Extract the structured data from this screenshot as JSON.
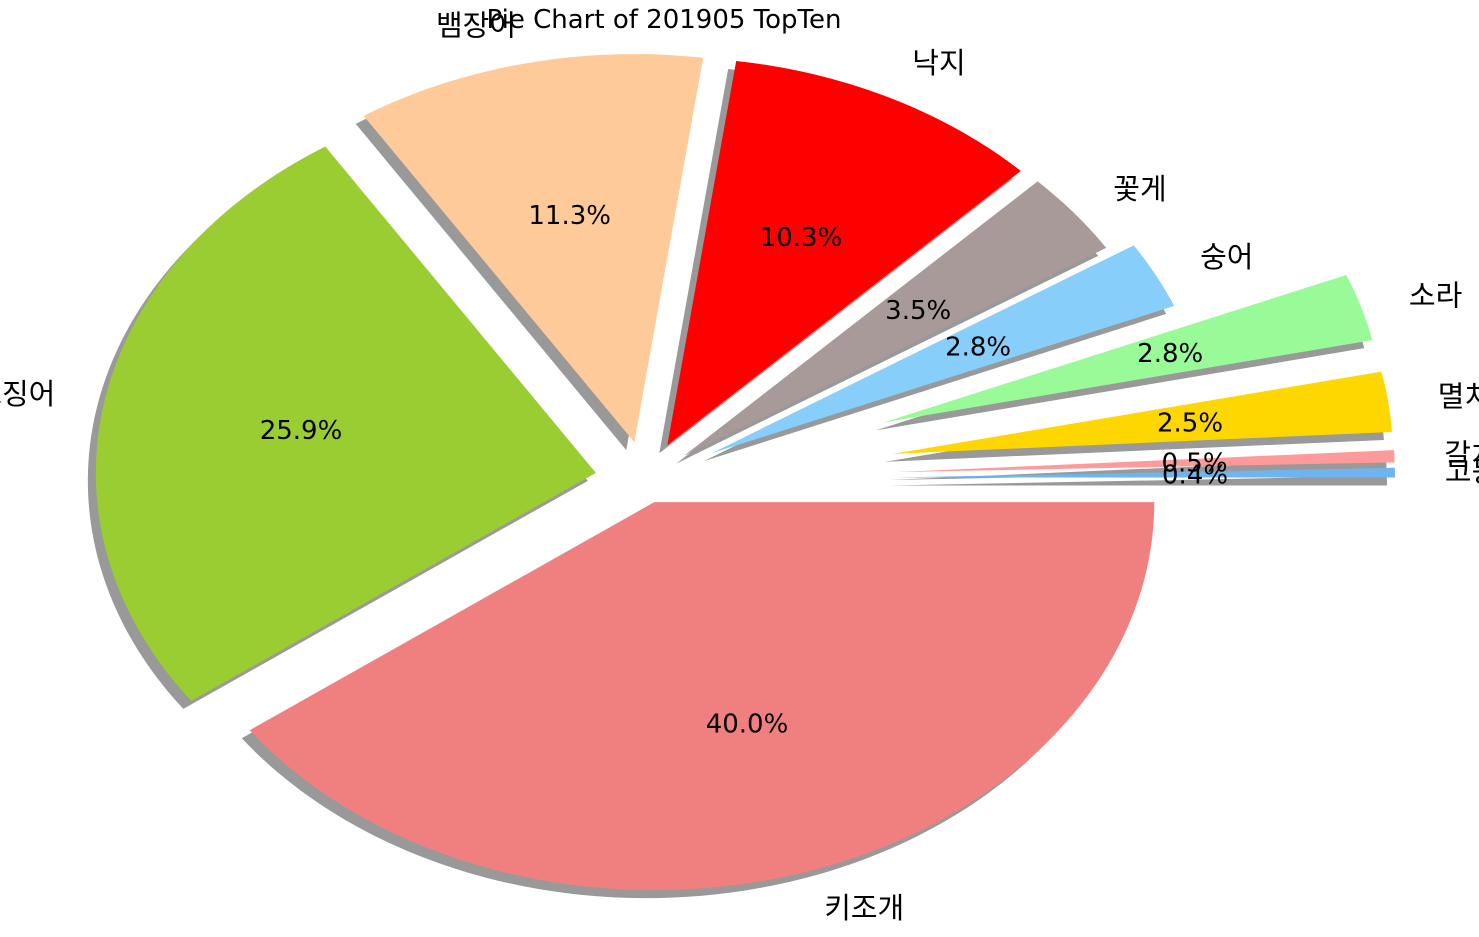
{
  "chart_data": {
    "type": "pie",
    "title": "Pie Chart of 201905 TopTen",
    "slices": [
      {
        "label": "키조개",
        "value": 40.0,
        "pct_label": "40.0%",
        "color": "#F08080"
      },
      {
        "label": "살오징어",
        "value": 25.9,
        "pct_label": "25.9%",
        "color": "#9ACD32"
      },
      {
        "label": "뱀장어",
        "value": 11.3,
        "pct_label": "11.3%",
        "color": "#FFCA99"
      },
      {
        "label": "낙지",
        "value": 10.3,
        "pct_label": "10.3%",
        "color": "#FF0000"
      },
      {
        "label": "꽃게",
        "value": 3.5,
        "pct_label": "3.5%",
        "color": "#A89A98"
      },
      {
        "label": "숭어",
        "value": 2.8,
        "pct_label": "2.8%",
        "color": "#87CEFA"
      },
      {
        "label": "소라",
        "value": 2.8,
        "pct_label": "2.8%",
        "color": "#98FB98"
      },
      {
        "label": "멸치",
        "value": 2.5,
        "pct_label": "2.5%",
        "color": "#FFD700"
      },
      {
        "label": "갈치류",
        "value": 0.5,
        "pct_label": "0.5%",
        "color": "#FF9A9A"
      },
      {
        "label": "고등어",
        "value": 0.4,
        "pct_label": "0.4%",
        "color": "#6EB4F0"
      }
    ],
    "start_angle": 0,
    "direction": "clockwise",
    "shadow": true,
    "exploded": true
  }
}
